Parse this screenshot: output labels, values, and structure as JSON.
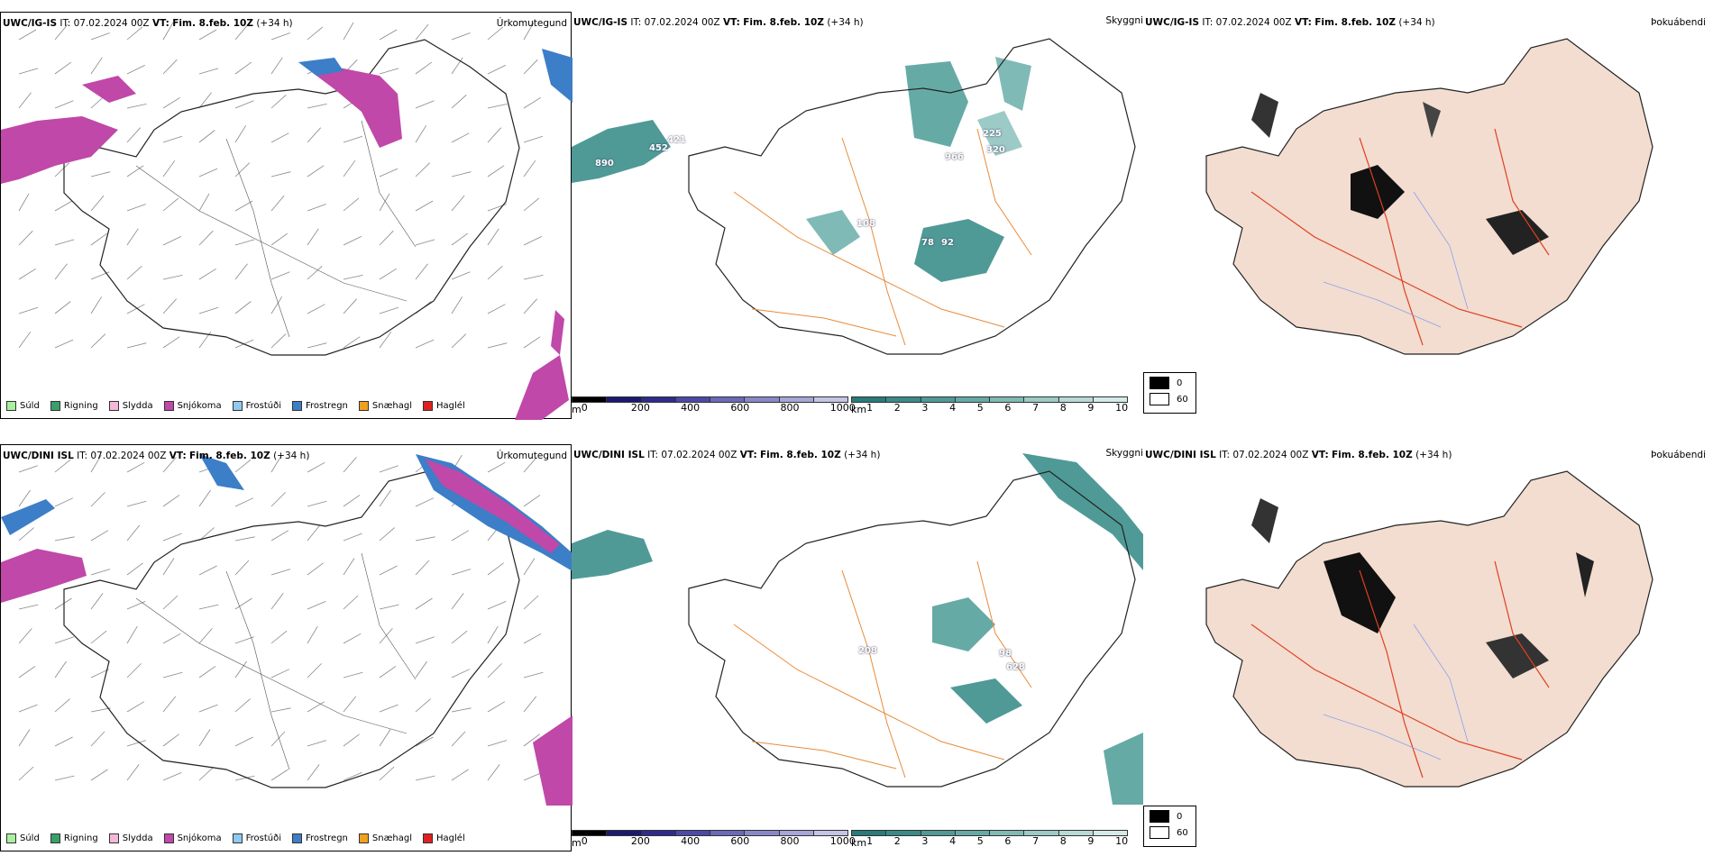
{
  "colors": {
    "precip": [
      "#a8f0a0",
      "#3aa06a",
      "#f4b8d8",
      "#c048a8",
      "#90c8f0",
      "#3c7ec8",
      "#f0a020",
      "#e02020"
    ],
    "cloud_base": [
      "#000000",
      "#1a1a6e",
      "#2c2c8c",
      "#4a4aa8",
      "#6a6ab8",
      "#8888c8",
      "#a6a6d8",
      "#c4c4e6"
    ],
    "visibility": [
      "#2a7a7a",
      "#3a8a88",
      "#4f9a96",
      "#66aaa6",
      "#80bab6",
      "#9ccac6",
      "#b8dad6",
      "#d4eae8"
    ],
    "coast": "#222222",
    "roads": "#e88b3c",
    "roads_red": "#e04020",
    "rivers": "#8aa0f0",
    "land_fill": "#f2ddd0",
    "hail": "#e02020"
  },
  "rows": [
    {
      "model": "UWC/IG-IS",
      "it_label": "IT:",
      "it_value": "07.02.2024 00Z",
      "vt_label": "VT:",
      "vt_value": "Fim. 8.feb. 10Z",
      "lead": "(+34 h)",
      "precip_title": "Úrkomutegund",
      "vis_title": "Skyggni",
      "fog_title": "Þokuábendi",
      "labels": [
        "890",
        "452",
        "421",
        "225",
        "320",
        "966",
        "108",
        "78",
        "92"
      ]
    },
    {
      "model": "UWC/DINI ISL",
      "it_label": "IT:",
      "it_value": "07.02.2024 00Z",
      "vt_label": "VT:",
      "vt_value": "Fim. 8.feb. 10Z",
      "lead": "(+34 h)",
      "precip_title": "Úrkomutegund",
      "vis_title": "Skyggni",
      "fog_title": "Þokuábendi",
      "labels": [
        "208",
        "98",
        "628"
      ]
    }
  ],
  "precip_legend": [
    "Súld",
    "Rigning",
    "Slydda",
    "Snjókoma",
    "Frostúði",
    "Frostregn",
    "Snæhagl",
    "Haglél"
  ],
  "cloud_bar": {
    "unit": "m",
    "ticks": [
      "0",
      "200",
      "400",
      "600",
      "800",
      "1000"
    ]
  },
  "vis_bar": {
    "unit": "km",
    "ticks": [
      "1",
      "2",
      "3",
      "4",
      "5",
      "6",
      "7",
      "8",
      "9",
      "10"
    ]
  },
  "fog_legend": [
    "0",
    "60"
  ]
}
